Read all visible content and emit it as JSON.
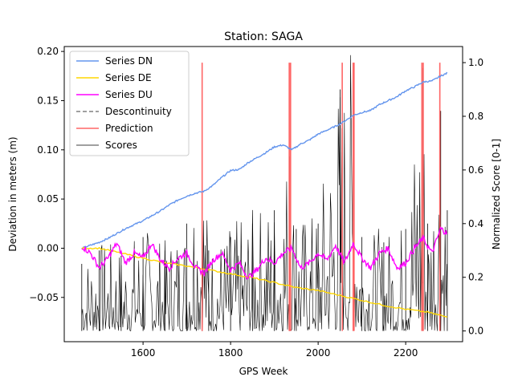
{
  "chart_data": {
    "type": "line",
    "title": "Station: SAGA",
    "xlabel": "GPS Week",
    "ylabel": "Deviation in meters (m)",
    "y2label": "Normalized Score [0-1]",
    "xlim": [
      1420,
      2330
    ],
    "ylim": [
      -0.095,
      0.205
    ],
    "y2lim": [
      -0.04,
      1.06
    ],
    "xticks": [
      1600,
      1800,
      2000,
      2200
    ],
    "yticks": [
      -0.05,
      0.0,
      0.05,
      0.1,
      0.15,
      0.2
    ],
    "ytick_labels": [
      "−0.05",
      "0.00",
      "0.05",
      "0.10",
      "0.15",
      "0.20"
    ],
    "y2ticks": [
      0.0,
      0.2,
      0.4,
      0.6,
      0.8,
      1.0
    ],
    "y2tick_labels": [
      "0.0",
      "0.2",
      "0.4",
      "0.6",
      "0.8",
      "1.0"
    ],
    "legend_position": "top-left",
    "legend": [
      {
        "label": "Series DN",
        "color": "#6495ed",
        "style": "solid"
      },
      {
        "label": "Series DE",
        "color": "#ffd700",
        "style": "solid"
      },
      {
        "label": "Series DU",
        "color": "#ff00ff",
        "style": "solid"
      },
      {
        "label": "Descontinuity",
        "color": "#808080",
        "style": "dashed"
      },
      {
        "label": "Prediction",
        "color": "#ff6666",
        "style": "solid"
      },
      {
        "label": "Scores",
        "color": "#000000",
        "style": "thin"
      }
    ],
    "series": [
      {
        "name": "Series DN",
        "color": "#6495ed",
        "x": [
          1460,
          1480,
          1500,
          1520,
          1540,
          1560,
          1580,
          1600,
          1620,
          1640,
          1660,
          1680,
          1700,
          1720,
          1740,
          1760,
          1780,
          1800,
          1820,
          1840,
          1860,
          1880,
          1900,
          1920,
          1940,
          1960,
          1980,
          2000,
          2020,
          2040,
          2060,
          2080,
          2100,
          2120,
          2140,
          2160,
          2180,
          2200,
          2220,
          2240,
          2260,
          2280,
          2295
        ],
        "y": [
          0.0,
          0.003,
          0.006,
          0.01,
          0.015,
          0.02,
          0.024,
          0.028,
          0.033,
          0.038,
          0.044,
          0.049,
          0.053,
          0.056,
          0.058,
          0.064,
          0.072,
          0.079,
          0.08,
          0.087,
          0.092,
          0.097,
          0.103,
          0.105,
          0.1,
          0.106,
          0.11,
          0.116,
          0.12,
          0.124,
          0.129,
          0.135,
          0.138,
          0.14,
          0.146,
          0.15,
          0.154,
          0.16,
          0.164,
          0.169,
          0.17,
          0.175,
          0.178
        ]
      },
      {
        "name": "Series DE",
        "color": "#ffd700",
        "x": [
          1460,
          1500,
          1550,
          1600,
          1650,
          1700,
          1750,
          1800,
          1850,
          1900,
          1950,
          2000,
          2050,
          2100,
          2150,
          2200,
          2250,
          2295
        ],
        "y": [
          0.0,
          0.0,
          -0.005,
          -0.01,
          -0.015,
          -0.018,
          -0.022,
          -0.026,
          -0.03,
          -0.035,
          -0.04,
          -0.043,
          -0.048,
          -0.053,
          -0.058,
          -0.062,
          -0.065,
          -0.07
        ]
      },
      {
        "name": "Series DU",
        "color": "#ff00ff",
        "x": [
          1460,
          1480,
          1500,
          1520,
          1540,
          1560,
          1580,
          1600,
          1620,
          1640,
          1660,
          1680,
          1700,
          1720,
          1740,
          1760,
          1780,
          1800,
          1820,
          1840,
          1860,
          1880,
          1900,
          1920,
          1940,
          1960,
          1980,
          2000,
          2020,
          2040,
          2060,
          2080,
          2100,
          2120,
          2140,
          2160,
          2180,
          2200,
          2220,
          2240,
          2260,
          2280,
          2295
        ],
        "y": [
          0.002,
          -0.005,
          -0.02,
          -0.01,
          0.005,
          -0.015,
          -0.005,
          -0.01,
          0.005,
          -0.012,
          -0.02,
          -0.01,
          -0.005,
          -0.02,
          -0.025,
          -0.012,
          -0.005,
          -0.022,
          -0.015,
          -0.03,
          -0.022,
          -0.01,
          -0.015,
          -0.005,
          0.0,
          -0.02,
          -0.015,
          -0.005,
          -0.012,
          0.003,
          -0.015,
          0.005,
          -0.01,
          -0.02,
          -0.005,
          0.0,
          -0.02,
          -0.015,
          0.0,
          0.01,
          -0.005,
          0.02,
          0.015
        ]
      }
    ],
    "scores_envelope": {
      "name": "Scores",
      "color": "#000000",
      "x": [
        1460,
        1500,
        1550,
        1600,
        1650,
        1700,
        1735,
        1750,
        1800,
        1850,
        1900,
        1935,
        1950,
        2000,
        2050,
        2080,
        2100,
        2150,
        2200,
        2238,
        2250,
        2280,
        2295
      ],
      "peaks": [
        0.25,
        0.3,
        0.28,
        0.35,
        0.3,
        0.4,
        0.75,
        0.3,
        0.35,
        0.4,
        0.45,
        0.65,
        0.38,
        0.4,
        0.9,
        0.95,
        0.35,
        0.33,
        0.38,
        0.98,
        0.4,
        0.82,
        0.45
      ]
    },
    "predictions": [
      1735,
      1934,
      1937,
      2055,
      2080,
      2082,
      2237,
      2240,
      2278
    ]
  }
}
